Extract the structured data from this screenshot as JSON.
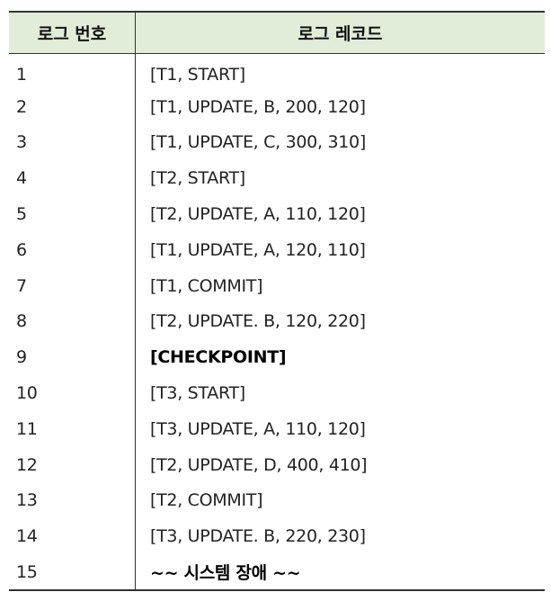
{
  "table": {
    "header": {
      "col_no": "로그 번호",
      "col_record": "로그 레코드"
    },
    "rows": [
      {
        "no": "1",
        "record": "[T1, START]",
        "bold": false
      },
      {
        "no": "2",
        "record": "[T1, UPDATE, B, 200, 120]",
        "bold": false
      },
      {
        "no": "3",
        "record": "[T1, UPDATE, C, 300, 310]",
        "bold": false
      },
      {
        "no": "4",
        "record": "[T2, START]",
        "bold": false
      },
      {
        "no": "5",
        "record": "[T2, UPDATE, A, 110, 120]",
        "bold": false
      },
      {
        "no": "6",
        "record": "[T1, UPDATE, A, 120, 110]",
        "bold": false
      },
      {
        "no": "7",
        "record": "[T1, COMMIT]",
        "bold": false
      },
      {
        "no": "8",
        "record": "[T2, UPDATE. B, 120, 220]",
        "bold": false
      },
      {
        "no": "9",
        "record": "[CHECKPOINT]",
        "bold": true
      },
      {
        "no": "10",
        "record": "[T3, START]",
        "bold": false
      },
      {
        "no": "11",
        "record": "[T3, UPDATE, A, 110, 120]",
        "bold": false
      },
      {
        "no": "12",
        "record": "[T2, UPDATE, D, 400, 410]",
        "bold": false
      },
      {
        "no": "13",
        "record": "[T2, COMMIT]",
        "bold": false
      },
      {
        "no": "14",
        "record": "[T3, UPDATE. B, 220, 230]",
        "bold": false
      },
      {
        "no": "15",
        "record": "~~ 시스템 장애 ~~",
        "bold": true
      }
    ]
  }
}
